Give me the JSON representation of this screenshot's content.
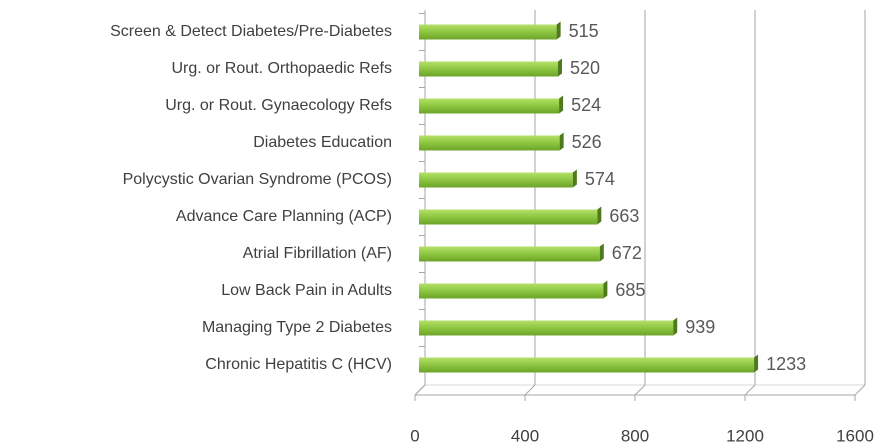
{
  "chart_data": {
    "type": "bar",
    "orientation": "horizontal",
    "categories": [
      "Screen & Detect Diabetes/Pre-Diabetes",
      "Urg. or Rout. Orthopaedic Refs",
      "Urg. or Rout. Gynaecology Refs",
      "Diabetes Education",
      "Polycystic Ovarian Syndrome (PCOS)",
      "Advance Care Planning (ACP)",
      "Atrial Fibrillation (AF)",
      "Low Back Pain in Adults",
      "Managing Type 2 Diabetes",
      "Chronic Hepatitis C (HCV)"
    ],
    "values": [
      515,
      520,
      524,
      526,
      574,
      663,
      672,
      685,
      939,
      1233
    ],
    "color": "#8cc63f",
    "xlim": [
      0,
      1600
    ],
    "xticks": [
      0,
      400,
      800,
      1200,
      1600
    ],
    "grid": true
  }
}
